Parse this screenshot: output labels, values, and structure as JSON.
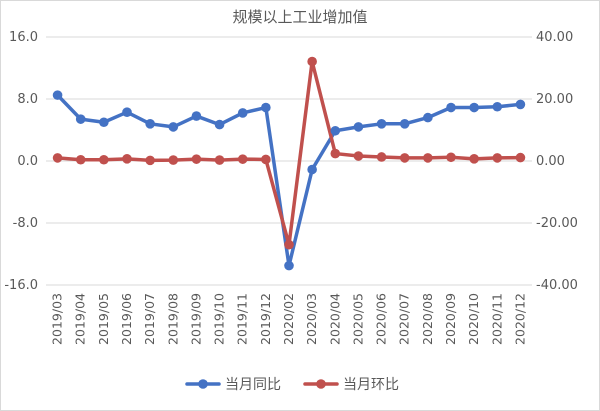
{
  "chart_data": {
    "type": "line",
    "title": "规模以上工业增加值",
    "categories": [
      "2019/03",
      "2019/04",
      "2019/05",
      "2019/06",
      "2019/07",
      "2019/08",
      "2019/09",
      "2019/10",
      "2019/11",
      "2019/12",
      "2020/02",
      "2020/03",
      "2020/04",
      "2020/05",
      "2020/06",
      "2020/07",
      "2020/08",
      "2020/09",
      "2020/10",
      "2020/11",
      "2020/12"
    ],
    "left_axis": {
      "ylim": [
        -16,
        16
      ],
      "ticks": [
        "16.0",
        "8.0",
        "0.0",
        "-8.0",
        "-16.0"
      ]
    },
    "right_axis": {
      "ylim": [
        -40,
        40
      ],
      "ticks": [
        "40.00",
        "20.00",
        "0.00",
        "-20.00",
        "-40.00"
      ]
    },
    "series": [
      {
        "name": "当月同比",
        "axis": "left",
        "color": "#4472c4",
        "values": [
          8.5,
          5.4,
          5.0,
          6.3,
          4.8,
          4.4,
          5.8,
          4.7,
          6.2,
          6.9,
          -13.5,
          -1.1,
          3.9,
          4.4,
          4.8,
          4.8,
          5.6,
          6.9,
          6.9,
          7.0,
          7.3
        ]
      },
      {
        "name": "当月环比",
        "axis": "right",
        "color": "#c0504d",
        "values": [
          1.0,
          0.4,
          0.4,
          0.7,
          0.2,
          0.3,
          0.6,
          0.3,
          0.6,
          0.5,
          -27.0,
          32.1,
          2.4,
          1.6,
          1.3,
          1.0,
          1.0,
          1.2,
          0.7,
          1.0,
          1.1
        ]
      }
    ],
    "grid": "horizontal",
    "legend": "bottom"
  }
}
